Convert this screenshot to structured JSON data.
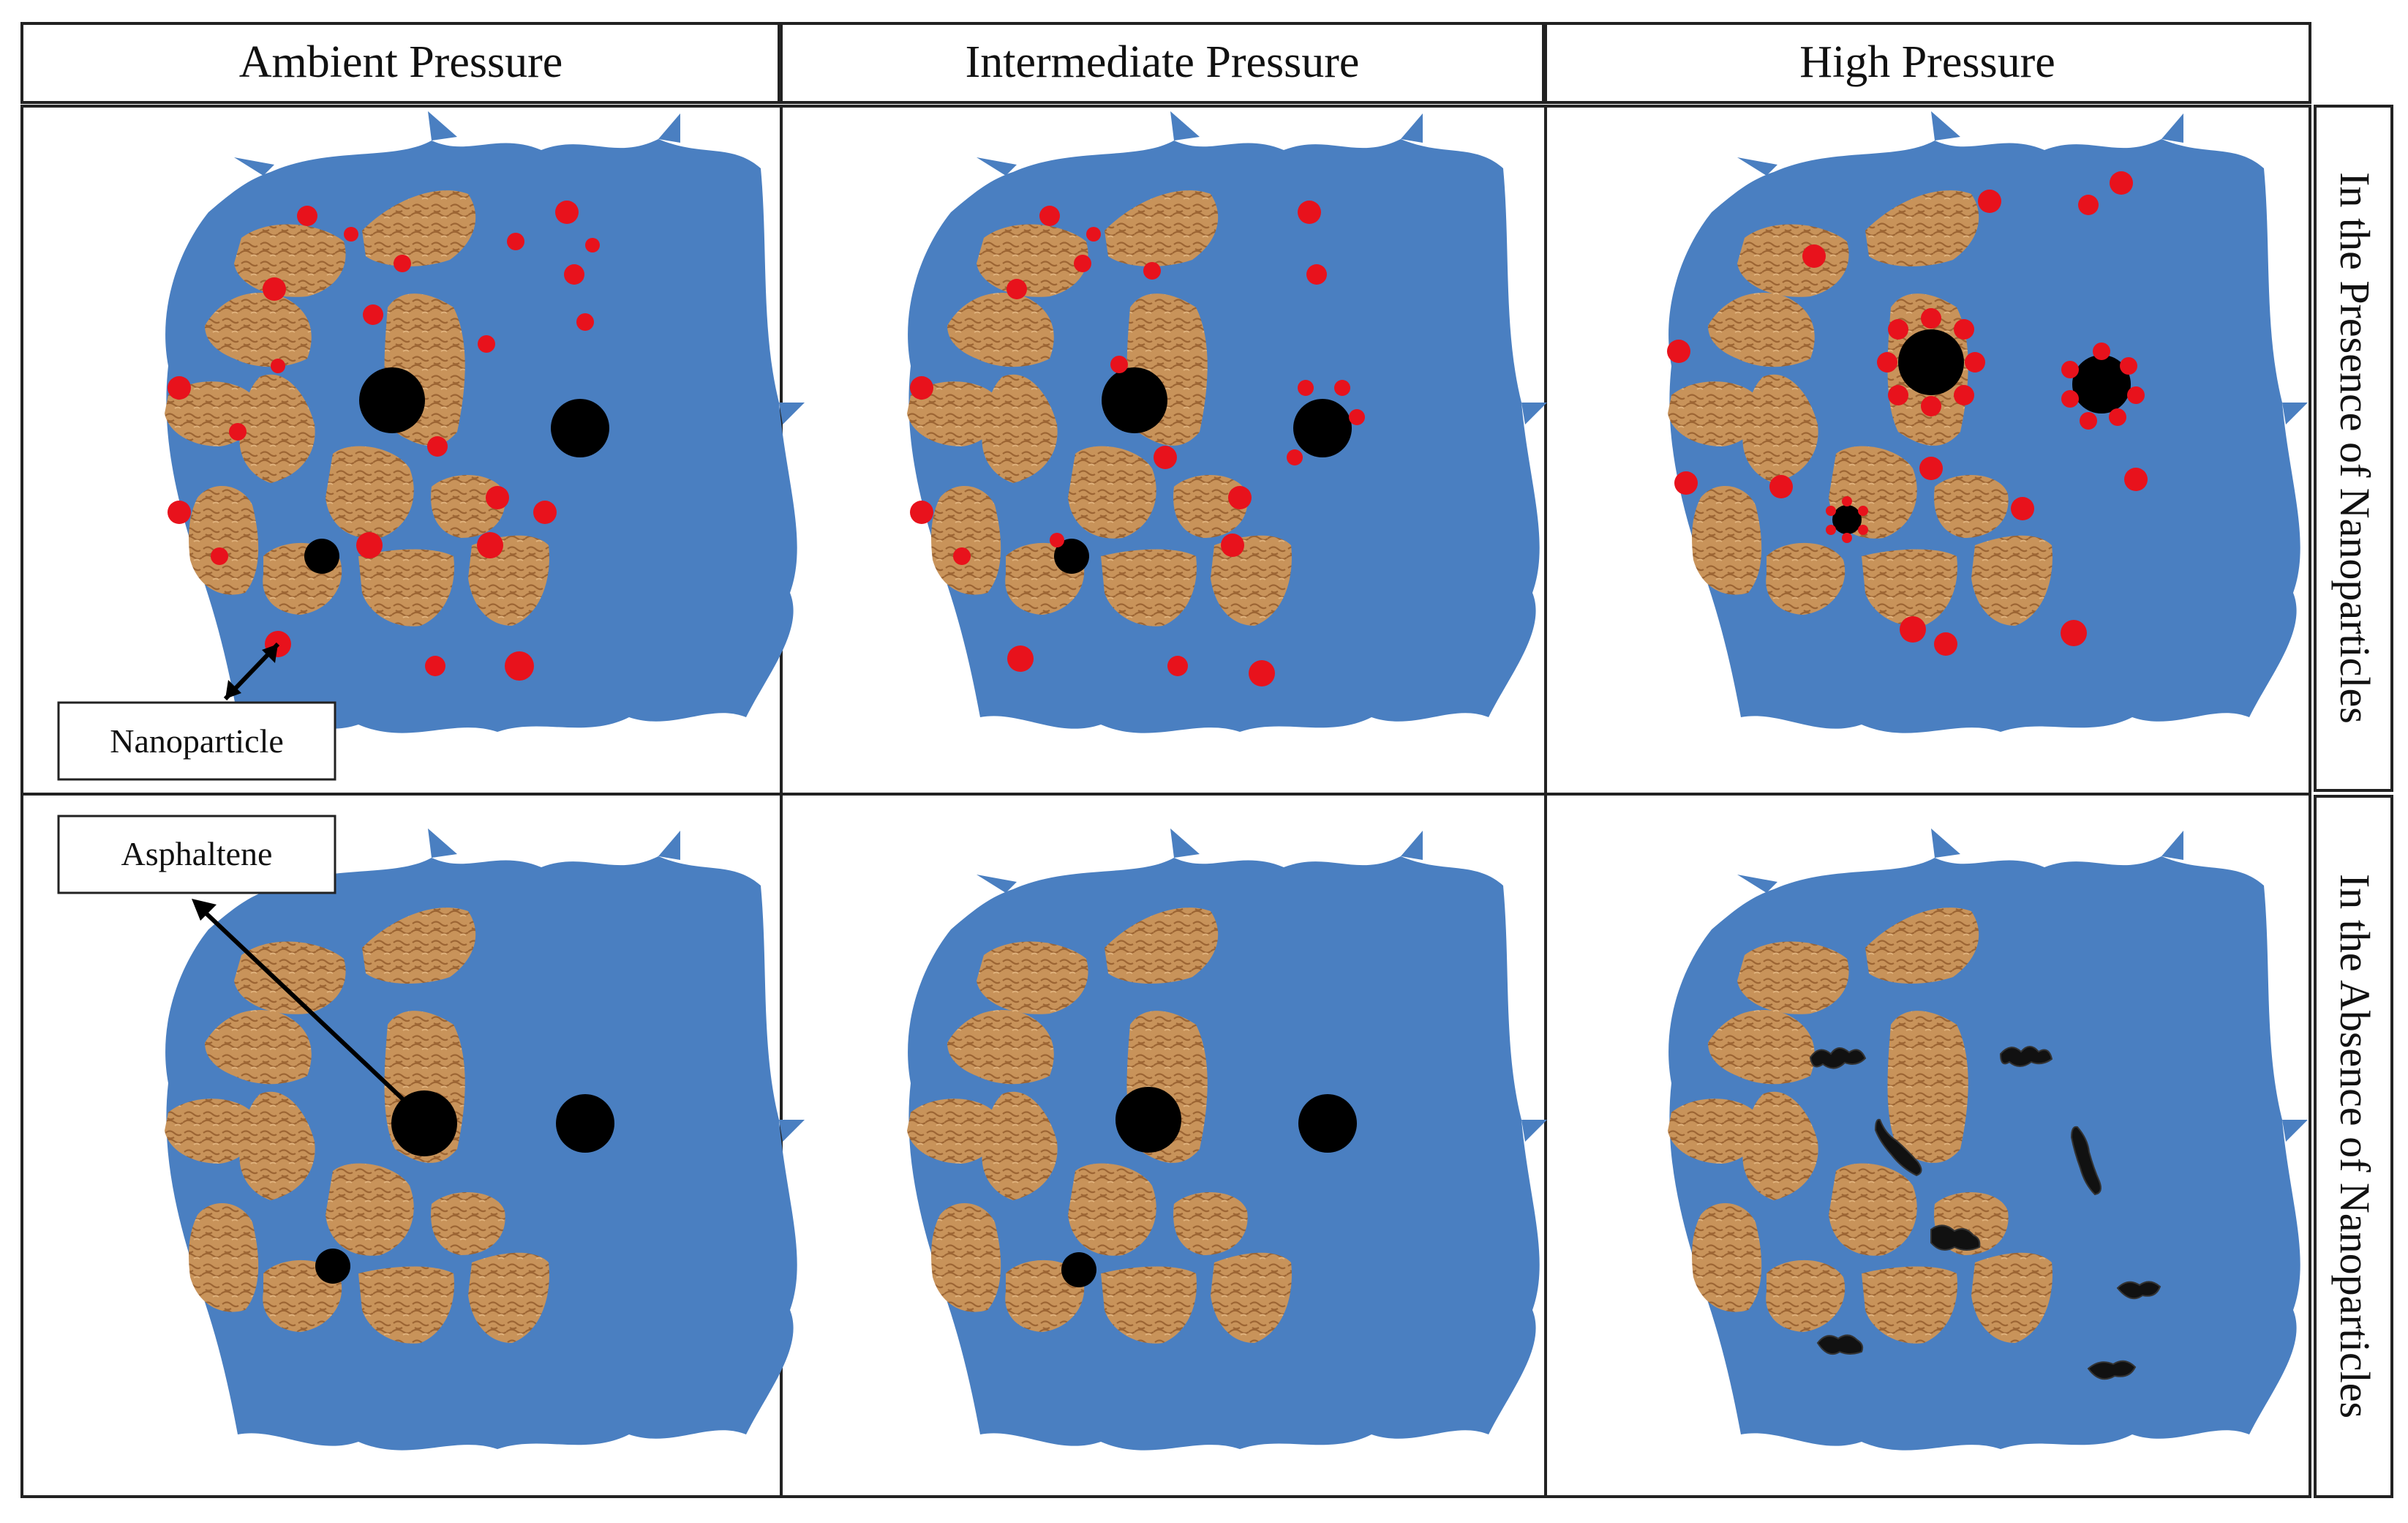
{
  "headers": {
    "ambient": "Ambient Pressure",
    "intermediate": "Intermediate Pressure",
    "high": "High Pressure"
  },
  "row_labels": {
    "presence": "In the Presence of Nanoparticles",
    "absence": "In the Absence of Nanoparticles"
  },
  "callouts": {
    "nanoparticle": "Nanoparticle",
    "asphaltene": "Asphaltene"
  },
  "colors": {
    "fluid": "#4a7fc1",
    "grain": "#c8935a",
    "grain_texture": "#a06a38",
    "asphaltene": "#000000",
    "nanoparticle": "#e8121c",
    "border": "#222222"
  }
}
